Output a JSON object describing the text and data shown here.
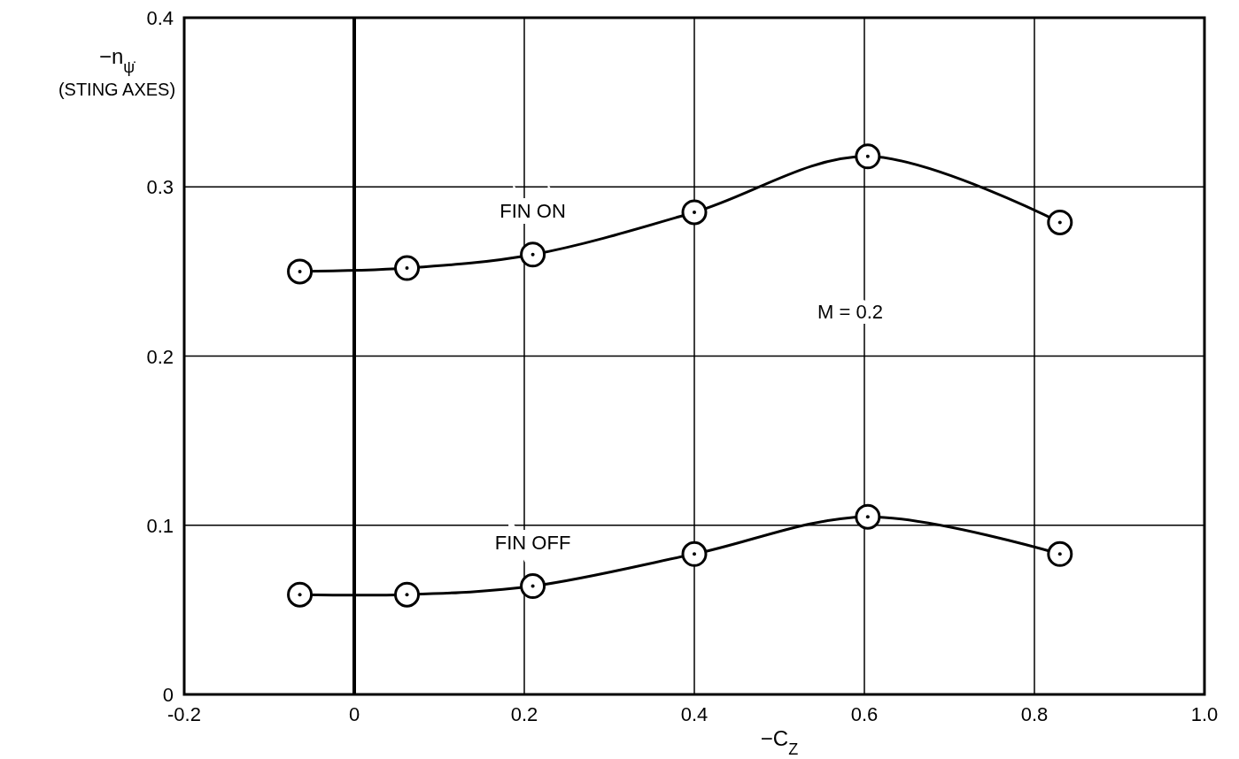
{
  "chart_data": {
    "type": "line",
    "xlabel": "−C$_{Z}$",
    "ylabel": "−n$_{ψ̇}$ (STING AXES)",
    "x": [
      -0.064,
      0.062,
      0.21,
      0.4,
      0.604,
      0.83
    ],
    "series": [
      {
        "name": "FIN ON",
        "color": "#000000",
        "values": [
          0.25,
          0.252,
          0.26,
          0.285,
          0.318,
          0.279
        ]
      },
      {
        "name": "FIN OFF",
        "color": "#000000",
        "values": [
          0.059,
          0.059,
          0.064,
          0.083,
          0.105,
          0.083
        ]
      }
    ],
    "xlim": [
      -0.2,
      1.0
    ],
    "ylim": [
      0,
      0.4
    ],
    "xticks": [
      -0.2,
      0,
      0.2,
      0.4,
      0.6,
      0.8,
      {
        "value": 1.0,
        "label": "1.0"
      }
    ],
    "yticks": [
      0,
      0.1,
      0.2,
      0.3,
      0.4
    ],
    "ref_lines": [
      {
        "axis": "x",
        "value": 0,
        "color": "#000000"
      }
    ],
    "annotations": [
      "M = 0.2"
    ],
    "grid": true,
    "marker": "circle",
    "line_style": "solid"
  }
}
